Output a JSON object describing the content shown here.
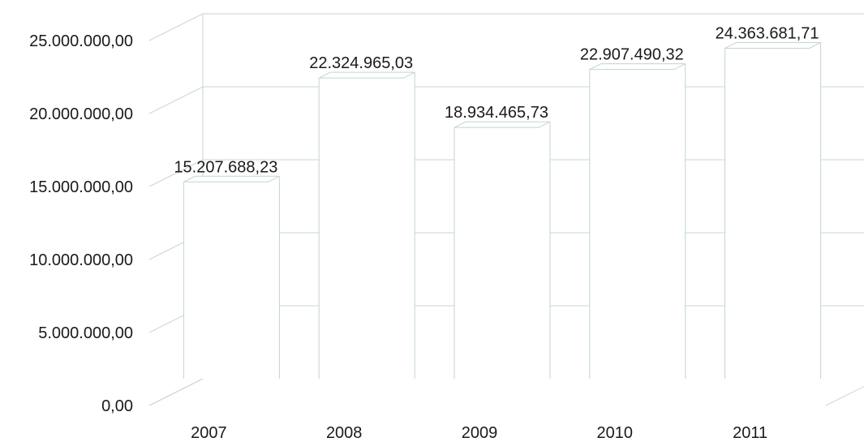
{
  "chart_data": {
    "type": "bar",
    "categories": [
      "2007",
      "2008",
      "2009",
      "2010",
      "2011"
    ],
    "values": [
      15207688.23,
      22324965.03,
      18934465.73,
      22907490.32,
      24363681.71
    ],
    "data_labels": [
      "15.207.688,23",
      "22.324.965,03",
      "18.934.465,73",
      "22.907.490,32",
      "24.363.681,71"
    ],
    "y_ticks": [
      {
        "value": 0,
        "label": "0,00"
      },
      {
        "value": 5000000,
        "label": "5.000.000,00"
      },
      {
        "value": 10000000,
        "label": "10.000.000,00"
      },
      {
        "value": 15000000,
        "label": "15.000.000,00"
      },
      {
        "value": 20000000,
        "label": "20.000.000,00"
      },
      {
        "value": 25000000,
        "label": "25.000.000,00"
      }
    ],
    "ylim": [
      0,
      25000000
    ],
    "grid": true,
    "style": "3d"
  }
}
